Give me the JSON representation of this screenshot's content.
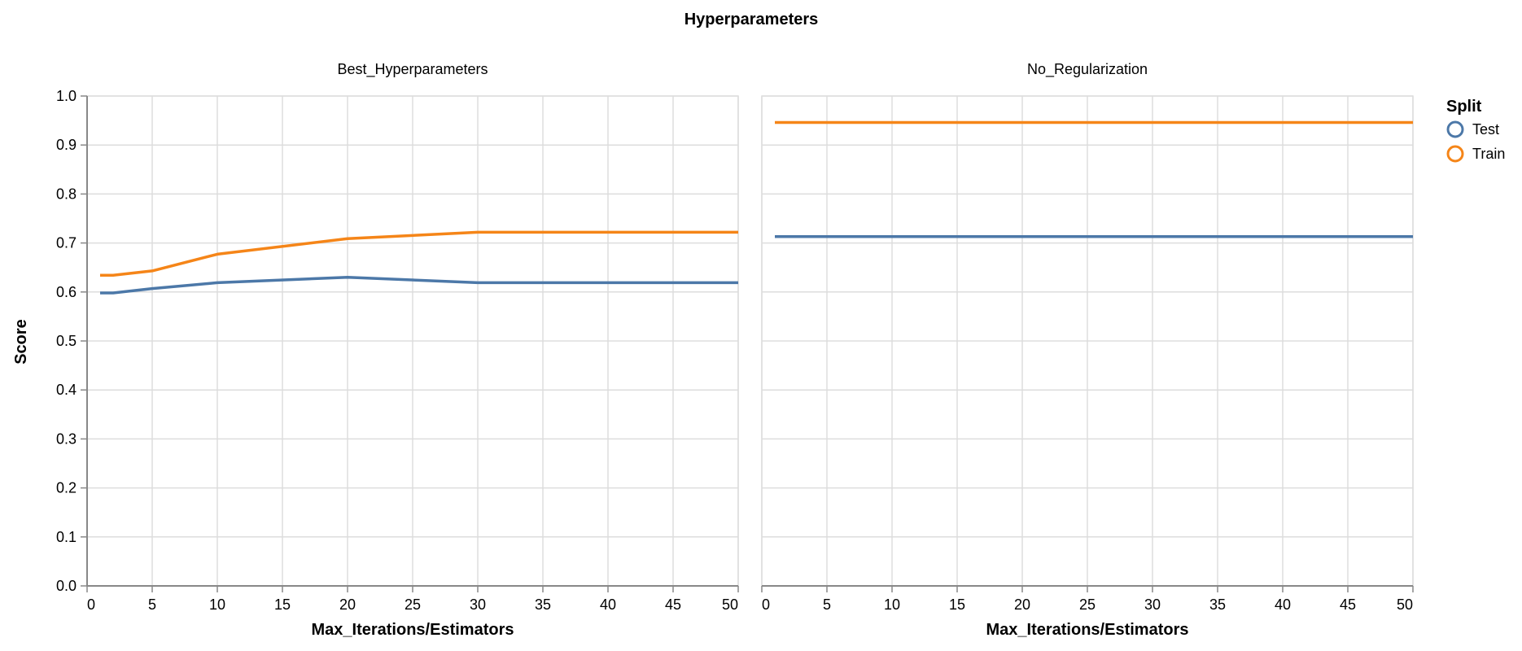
{
  "chart_data": {
    "type": "line",
    "title": "Hyperparameters",
    "ylabel": "Score",
    "xlabel": "Max_Iterations/Estimators",
    "xlim": [
      0,
      50
    ],
    "ylim": [
      0,
      1.0
    ],
    "x_ticks": [
      0,
      5,
      10,
      15,
      20,
      25,
      30,
      35,
      40,
      45,
      50
    ],
    "y_ticks": [
      0.0,
      0.1,
      0.2,
      0.3,
      0.4,
      0.5,
      0.6,
      0.7,
      0.8,
      0.9,
      1.0
    ],
    "grid": true,
    "legend": {
      "title": "Split",
      "position": "right",
      "entries": [
        {
          "label": "Test",
          "color": "#4c78a8"
        },
        {
          "label": "Train",
          "color": "#f58518"
        }
      ]
    },
    "facets": [
      {
        "title": "Best_Hyperparameters",
        "series": [
          {
            "name": "Test",
            "color": "#4c78a8",
            "x": [
              1,
              2,
              5,
              10,
              20,
              30,
              40,
              50
            ],
            "y": [
              0.598,
              0.598,
              0.607,
              0.619,
              0.63,
              0.619,
              0.619,
              0.619
            ]
          },
          {
            "name": "Train",
            "color": "#f58518",
            "x": [
              1,
              2,
              5,
              10,
              20,
              30,
              40,
              50
            ],
            "y": [
              0.634,
              0.634,
              0.643,
              0.677,
              0.709,
              0.722,
              0.722,
              0.722
            ]
          }
        ]
      },
      {
        "title": "No_Regularization",
        "series": [
          {
            "name": "Test",
            "color": "#4c78a8",
            "x": [
              1,
              50
            ],
            "y": [
              0.713,
              0.713
            ]
          },
          {
            "name": "Train",
            "color": "#f58518",
            "x": [
              1,
              50
            ],
            "y": [
              0.946,
              0.946
            ]
          }
        ]
      }
    ]
  }
}
